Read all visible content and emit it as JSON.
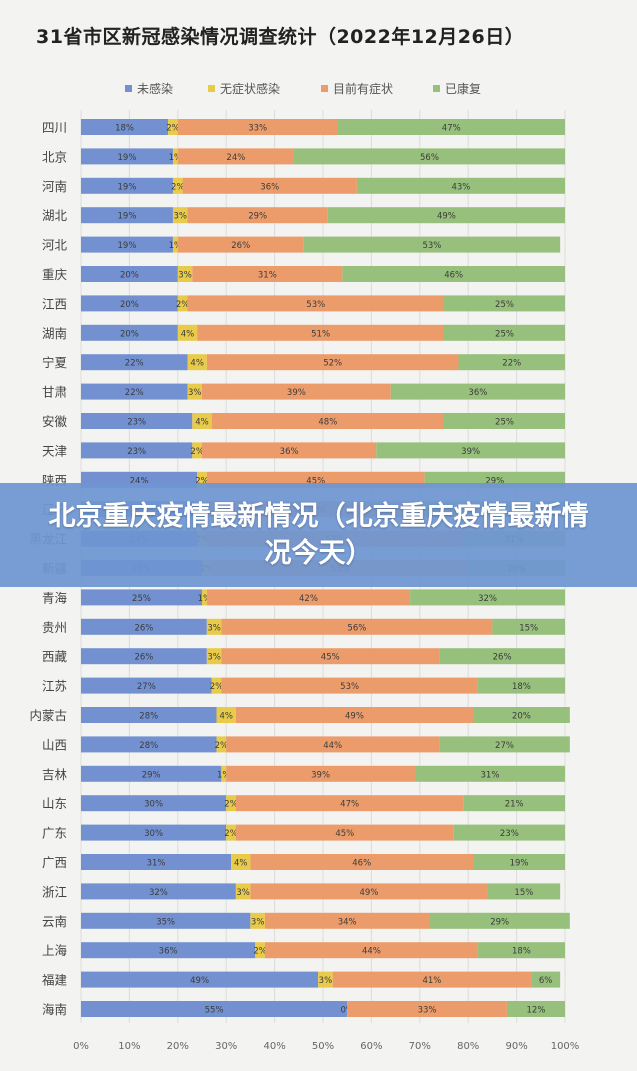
{
  "banner": {
    "text": "北京重庆疫情最新情况（北京重庆疫情最新情况今天）"
  },
  "chart_data": {
    "type": "bar",
    "orientation": "horizontal",
    "stacked": "percent",
    "title": "31省市区新冠感染情况调查统计（2022年12月26日）",
    "legend_position": "top",
    "xlim": [
      0,
      100
    ],
    "x_ticks": [
      "0%",
      "10%",
      "20%",
      "30%",
      "40%",
      "50%",
      "60%",
      "70%",
      "80%",
      "90%",
      "100%"
    ],
    "grid": true,
    "categories": [
      "四川",
      "北京",
      "河南",
      "湖北",
      "河北",
      "重庆",
      "江西",
      "湖南",
      "宁夏",
      "甘肃",
      "安徽",
      "天津",
      "陕西",
      "辽宁",
      "黑龙江",
      "新疆",
      "青海",
      "贵州",
      "西藏",
      "江苏",
      "内蒙古",
      "山西",
      "吉林",
      "山东",
      "广东",
      "广西",
      "浙江",
      "云南",
      "上海",
      "福建",
      "海南"
    ],
    "series": [
      {
        "name": "未感染",
        "color": "#7391d0",
        "values": [
          18,
          19,
          19,
          19,
          19,
          20,
          20,
          20,
          22,
          22,
          23,
          23,
          24,
          24,
          24,
          25,
          25,
          26,
          26,
          27,
          28,
          28,
          29,
          30,
          30,
          31,
          32,
          35,
          36,
          49,
          55
        ]
      },
      {
        "name": "无症状感染",
        "color": "#e9cb4b",
        "values": [
          2,
          1,
          2,
          3,
          1,
          3,
          2,
          4,
          4,
          3,
          4,
          2,
          2,
          2,
          2,
          2,
          1,
          3,
          3,
          2,
          4,
          2,
          1,
          2,
          2,
          4,
          3,
          3,
          2,
          3,
          0
        ]
      },
      {
        "name": "目前有症状",
        "color": "#ec9c6a",
        "values": [
          33,
          24,
          36,
          29,
          26,
          31,
          53,
          51,
          52,
          39,
          48,
          36,
          45,
          45,
          53,
          53,
          42,
          56,
          45,
          53,
          49,
          44,
          39,
          47,
          45,
          46,
          49,
          34,
          44,
          41,
          33
        ]
      },
      {
        "name": "已康复",
        "color": "#96c07b",
        "values": [
          47,
          56,
          43,
          49,
          53,
          46,
          25,
          25,
          22,
          36,
          25,
          39,
          29,
          29,
          21,
          20,
          32,
          15,
          26,
          18,
          20,
          27,
          31,
          21,
          23,
          19,
          15,
          29,
          18,
          6,
          12
        ]
      }
    ]
  }
}
